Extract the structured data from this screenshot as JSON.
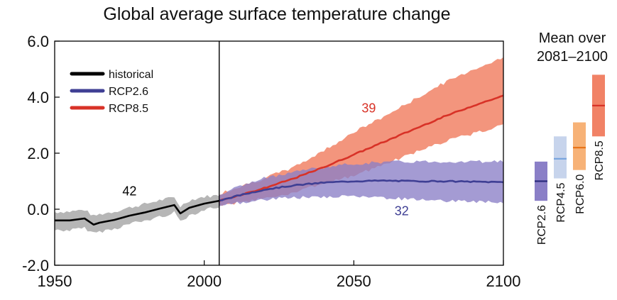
{
  "chart_data": {
    "type": "line",
    "title": "Global average surface temperature change",
    "xlabel": "",
    "ylabel": "",
    "xlim": [
      1950,
      2100
    ],
    "ylim": [
      -2.0,
      6.0
    ],
    "x_ticks": [
      "1950",
      "2000",
      "2050",
      "2100"
    ],
    "y_ticks": [
      "-2.0",
      "0.0",
      "2.0",
      "4.0",
      "6.0"
    ],
    "grid": false,
    "legend": {
      "position": "top-left",
      "entries": [
        {
          "label": "historical",
          "color": "#000000"
        },
        {
          "label": "RCP2.6",
          "color": "#3f3f94"
        },
        {
          "label": "RCP8.5",
          "color": "#d83227"
        }
      ]
    },
    "divider_year": 2005,
    "annotations": [
      {
        "text": "42",
        "x": 1975,
        "y": 0.5,
        "color": "#000000"
      },
      {
        "text": "39",
        "x": 2055,
        "y": 3.45,
        "color": "#d83227"
      },
      {
        "text": "32",
        "x": 2066,
        "y": -0.22,
        "color": "#3f3f94"
      }
    ],
    "series": [
      {
        "name": "historical",
        "color": "#000000",
        "band_color": "#a9a9a9",
        "x": [
          1950,
          1955,
          1960,
          1963,
          1965,
          1970,
          1975,
          1980,
          1985,
          1990,
          1992,
          1995,
          2000,
          2005
        ],
        "y": [
          -0.4,
          -0.4,
          -0.33,
          -0.55,
          -0.48,
          -0.38,
          -0.23,
          -0.12,
          0.02,
          0.15,
          -0.15,
          0.05,
          0.2,
          0.3
        ],
        "y_low": [
          -0.75,
          -0.75,
          -0.68,
          -0.85,
          -0.8,
          -0.7,
          -0.52,
          -0.42,
          -0.28,
          -0.12,
          -0.42,
          -0.22,
          -0.02,
          0.1
        ],
        "y_high": [
          -0.1,
          -0.08,
          -0.02,
          -0.25,
          -0.18,
          -0.08,
          0.06,
          0.18,
          0.32,
          0.42,
          0.1,
          0.32,
          0.45,
          0.5
        ]
      },
      {
        "name": "RCP2.6",
        "color": "#3f3f94",
        "band_color": "#8a7fc7",
        "x": [
          2005,
          2010,
          2020,
          2030,
          2040,
          2050,
          2060,
          2070,
          2080,
          2090,
          2100
        ],
        "y": [
          0.3,
          0.45,
          0.7,
          0.85,
          0.95,
          1.0,
          1.02,
          1.0,
          1.0,
          0.98,
          0.97
        ],
        "y_low": [
          0.1,
          0.2,
          0.35,
          0.4,
          0.45,
          0.45,
          0.4,
          0.35,
          0.3,
          0.28,
          0.25
        ],
        "y_high": [
          0.55,
          0.75,
          1.1,
          1.35,
          1.5,
          1.62,
          1.68,
          1.7,
          1.7,
          1.7,
          1.72
        ]
      },
      {
        "name": "RCP8.5",
        "color": "#d83227",
        "band_color": "#f18266",
        "x": [
          2005,
          2010,
          2020,
          2030,
          2040,
          2050,
          2060,
          2070,
          2080,
          2090,
          2100
        ],
        "y": [
          0.3,
          0.45,
          0.75,
          1.1,
          1.5,
          1.95,
          2.4,
          2.85,
          3.3,
          3.7,
          4.05
        ],
        "y_low": [
          0.1,
          0.2,
          0.4,
          0.6,
          0.9,
          1.2,
          1.6,
          2.0,
          2.4,
          2.7,
          3.0
        ],
        "y_high": [
          0.55,
          0.75,
          1.1,
          1.5,
          2.1,
          2.75,
          3.3,
          3.9,
          4.5,
          5.0,
          5.4
        ]
      }
    ],
    "side_panel": {
      "title_lines": [
        "Mean over",
        "2081–2100"
      ],
      "bars": [
        {
          "name": "RCP2.6",
          "mean": 1.0,
          "low": 0.3,
          "high": 1.7,
          "color": "#2c2c7e",
          "band_color": "#8a7fc7"
        },
        {
          "name": "RCP4.5",
          "mean": 1.8,
          "low": 1.1,
          "high": 2.6,
          "color": "#7aa6de",
          "band_color": "#c7d4ec"
        },
        {
          "name": "RCP6.0",
          "mean": 2.2,
          "low": 1.4,
          "high": 3.1,
          "color": "#e8751a",
          "band_color": "#f7b277"
        },
        {
          "name": "RCP8.5",
          "mean": 3.7,
          "low": 2.6,
          "high": 4.8,
          "color": "#d83227",
          "band_color": "#f18266"
        }
      ]
    }
  }
}
